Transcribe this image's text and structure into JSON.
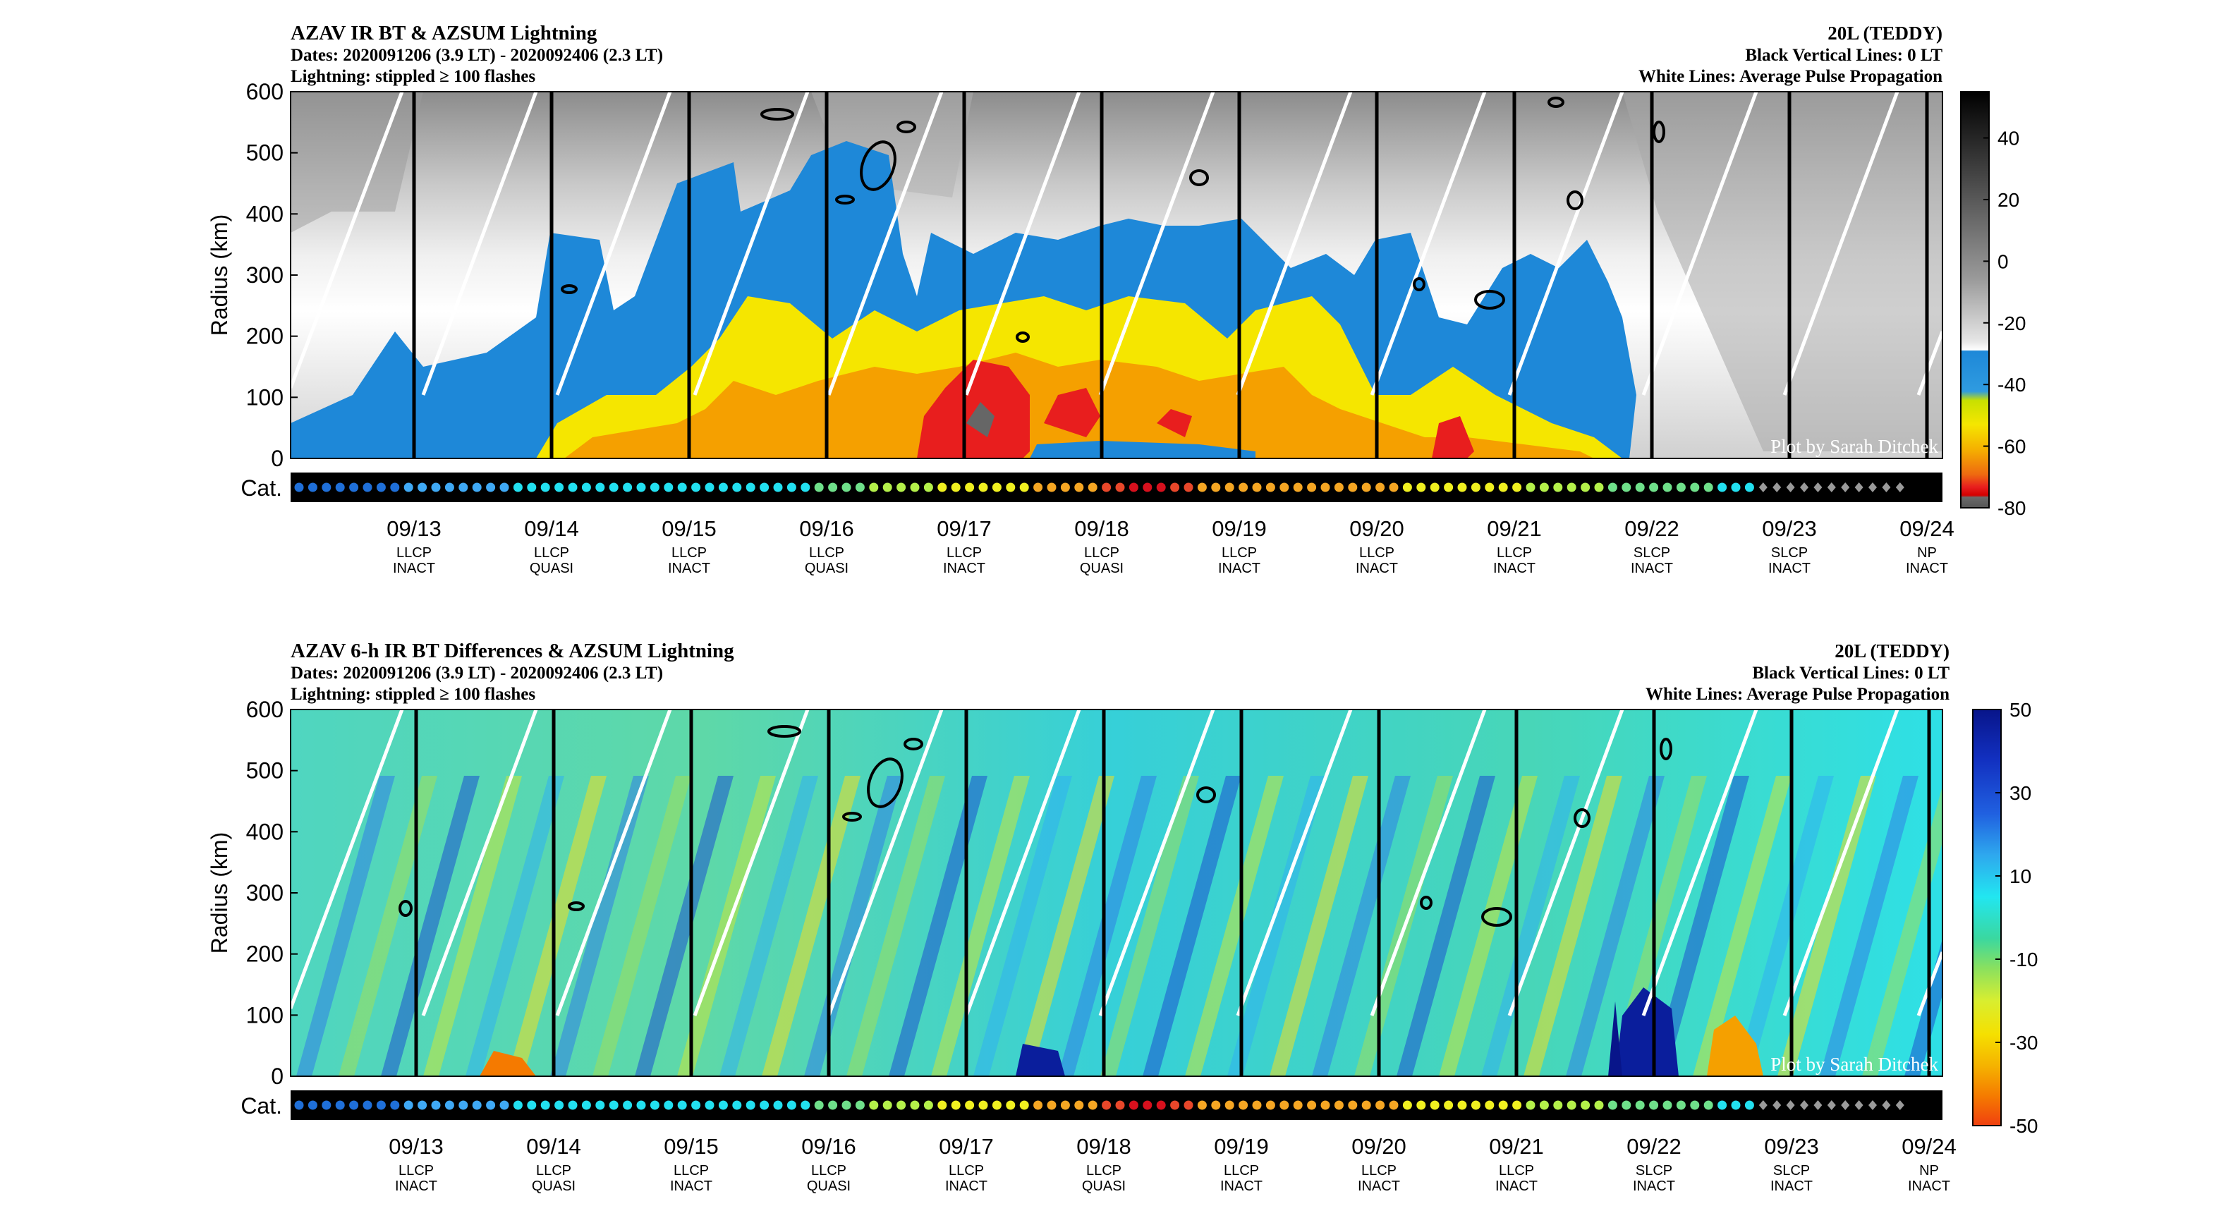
{
  "chart_data": [
    {
      "type": "heatmap",
      "title": "AZAV IR BT & AZSUM Lightning",
      "dates_line": "Dates: 2020091206 (3.9 LT) - 2020092406 (2.3 LT)",
      "lightning_line": "Lightning: stippled ≥ 100 flashes",
      "storm": "20L (TEDDY)",
      "note_black": "Black Vertical Lines: 0 LT",
      "note_white": "White Lines: Average Pulse Propagation",
      "ylabel": "Radius (km)",
      "cat_label": "Cat.",
      "credit": "Plot by Sarah Ditchek",
      "ylim": [
        0,
        600
      ],
      "yticks": [
        "0",
        "100",
        "200",
        "300",
        "400",
        "500",
        "600"
      ],
      "x_dates": [
        "09/13",
        "09/14",
        "09/15",
        "09/16",
        "09/17",
        "09/18",
        "09/19",
        "09/20",
        "09/21",
        "09/22",
        "09/23",
        "09/24"
      ],
      "x_phase": [
        "LLCP",
        "LLCP",
        "LLCP",
        "LLCP",
        "LLCP",
        "LLCP",
        "LLCP",
        "LLCP",
        "LLCP",
        "SLCP",
        "SLCP",
        "NP"
      ],
      "x_state": [
        "INACT",
        "QUASI",
        "INACT",
        "QUASI",
        "INACT",
        "QUASI",
        "INACT",
        "INACT",
        "INACT",
        "INACT",
        "INACT",
        "INACT"
      ],
      "colorbar_ticks": [
        "40",
        "20",
        "0",
        "-20",
        "-40",
        "-60",
        "-80"
      ],
      "colorbar_range": [
        -80,
        55
      ],
      "colorbar_palette": [
        "#000000",
        "#4d4d4d",
        "#9a9a9a",
        "#e8e8e8",
        "#1e88d8",
        "#f5e600",
        "#f5a000",
        "#e81e1e",
        "#666666"
      ],
      "category_colors": [
        "#1f6fd8",
        "#3fa9f5",
        "#22e0f0",
        "#6fe08a",
        "#b4f04a",
        "#f0f020",
        "#f5a623",
        "#e8472a",
        "#d7101d"
      ]
    },
    {
      "type": "heatmap",
      "title": "AZAV 6-h IR BT Differences & AZSUM Lightning",
      "dates_line": "Dates: 2020091206 (3.9 LT) - 2020092406 (2.3 LT)",
      "lightning_line": "Lightning: stippled ≥ 100 flashes",
      "storm": "20L (TEDDY)",
      "note_black": "Black Vertical Lines: 0 LT",
      "note_white": "White Lines: Average Pulse Propagation",
      "ylabel": "Radius (km)",
      "cat_label": "Cat.",
      "credit": "Plot by Sarah Ditchek",
      "ylim": [
        0,
        600
      ],
      "yticks": [
        "0",
        "100",
        "200",
        "300",
        "400",
        "500",
        "600"
      ],
      "x_dates": [
        "09/13",
        "09/14",
        "09/15",
        "09/16",
        "09/17",
        "09/18",
        "09/19",
        "09/20",
        "09/21",
        "09/22",
        "09/23",
        "09/24"
      ],
      "x_phase": [
        "LLCP",
        "LLCP",
        "LLCP",
        "LLCP",
        "LLCP",
        "LLCP",
        "LLCP",
        "LLCP",
        "LLCP",
        "SLCP",
        "SLCP",
        "NP"
      ],
      "x_state": [
        "INACT",
        "QUASI",
        "INACT",
        "QUASI",
        "INACT",
        "QUASI",
        "INACT",
        "INACT",
        "INACT",
        "INACT",
        "INACT",
        "INACT"
      ],
      "colorbar_ticks": [
        "50",
        "30",
        "10",
        "-10",
        "-30",
        "-50"
      ],
      "colorbar_range": [
        -50,
        50
      ],
      "colorbar_palette": [
        "#08198c",
        "#1438c8",
        "#2f7fe6",
        "#2ec8f0",
        "#22ecec",
        "#2fd68f",
        "#9ee05a",
        "#e6f020",
        "#f5c800",
        "#f58a00",
        "#f04a10"
      ],
      "category_colors": [
        "#1f6fd8",
        "#3fa9f5",
        "#22e0f0",
        "#6fe08a",
        "#b4f04a",
        "#f0f020",
        "#f5a623",
        "#e8472a",
        "#d7101d"
      ]
    }
  ]
}
